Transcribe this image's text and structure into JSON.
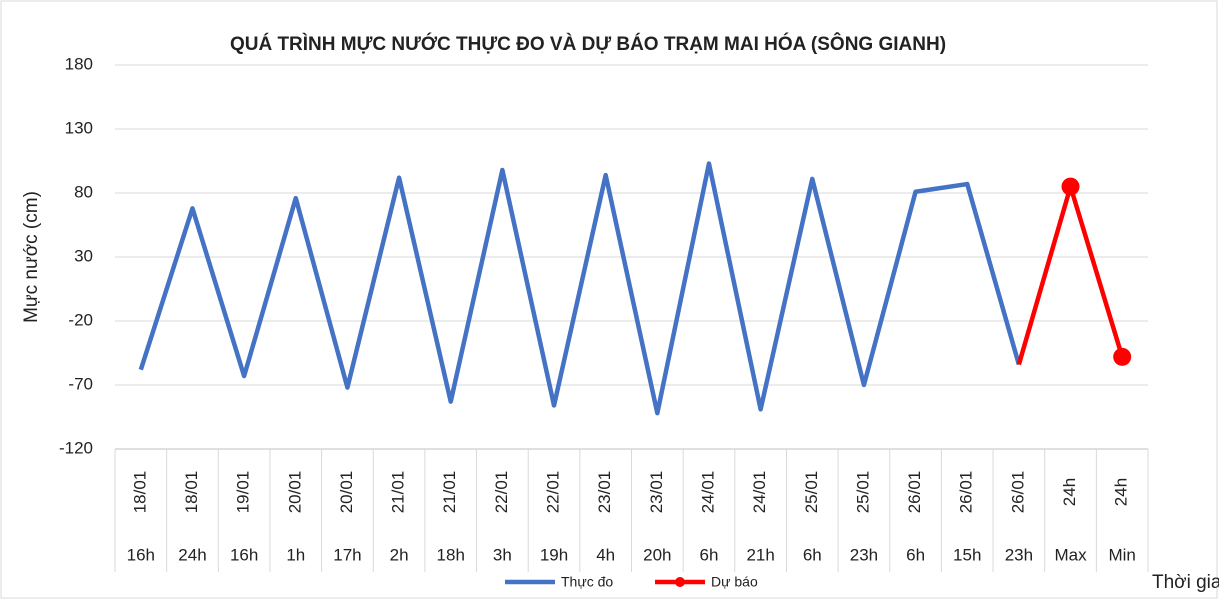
{
  "chart_data": {
    "type": "line",
    "title": "QUÁ TRÌNH MỰC NƯỚC THỰC ĐO VÀ DỰ BÁO TRẠM MAI HÓA (SÔNG GIANH)",
    "y_label": "Mực nước (cm)",
    "x_label": "Thời gian",
    "category_dates": [
      "18/01",
      "18/01",
      "19/01",
      "20/01",
      "20/01",
      "21/01",
      "21/01",
      "22/01",
      "22/01",
      "23/01",
      "23/01",
      "24/01",
      "24/01",
      "25/01",
      "25/01",
      "26/01",
      "26/01",
      "26/01",
      "24h",
      "24h"
    ],
    "categories": [
      "16h",
      "24h",
      "16h",
      "1h",
      "17h",
      "2h",
      "18h",
      "3h",
      "19h",
      "4h",
      "20h",
      "6h",
      "21h",
      "6h",
      "23h",
      "6h",
      "15h",
      "23h",
      "Max",
      "Min"
    ],
    "series": [
      {
        "name": "Thực đo",
        "color": "#4472c4",
        "markers": false,
        "values": [
          -58,
          68,
          -63,
          76,
          -72,
          92,
          -83,
          98,
          -86,
          94,
          -92,
          103,
          -89,
          91,
          -70,
          81,
          87,
          -54,
          null,
          null
        ]
      },
      {
        "name": "Dự báo",
        "color": "#ff0000",
        "markers": true,
        "values": [
          null,
          null,
          null,
          null,
          null,
          null,
          null,
          null,
          null,
          null,
          null,
          null,
          null,
          null,
          null,
          null,
          null,
          -54,
          85,
          -48
        ]
      }
    ],
    "ylim": [
      -120,
      180
    ],
    "yticks": [
      -120,
      -70,
      -20,
      30,
      80,
      130,
      180
    ],
    "grid": true
  }
}
